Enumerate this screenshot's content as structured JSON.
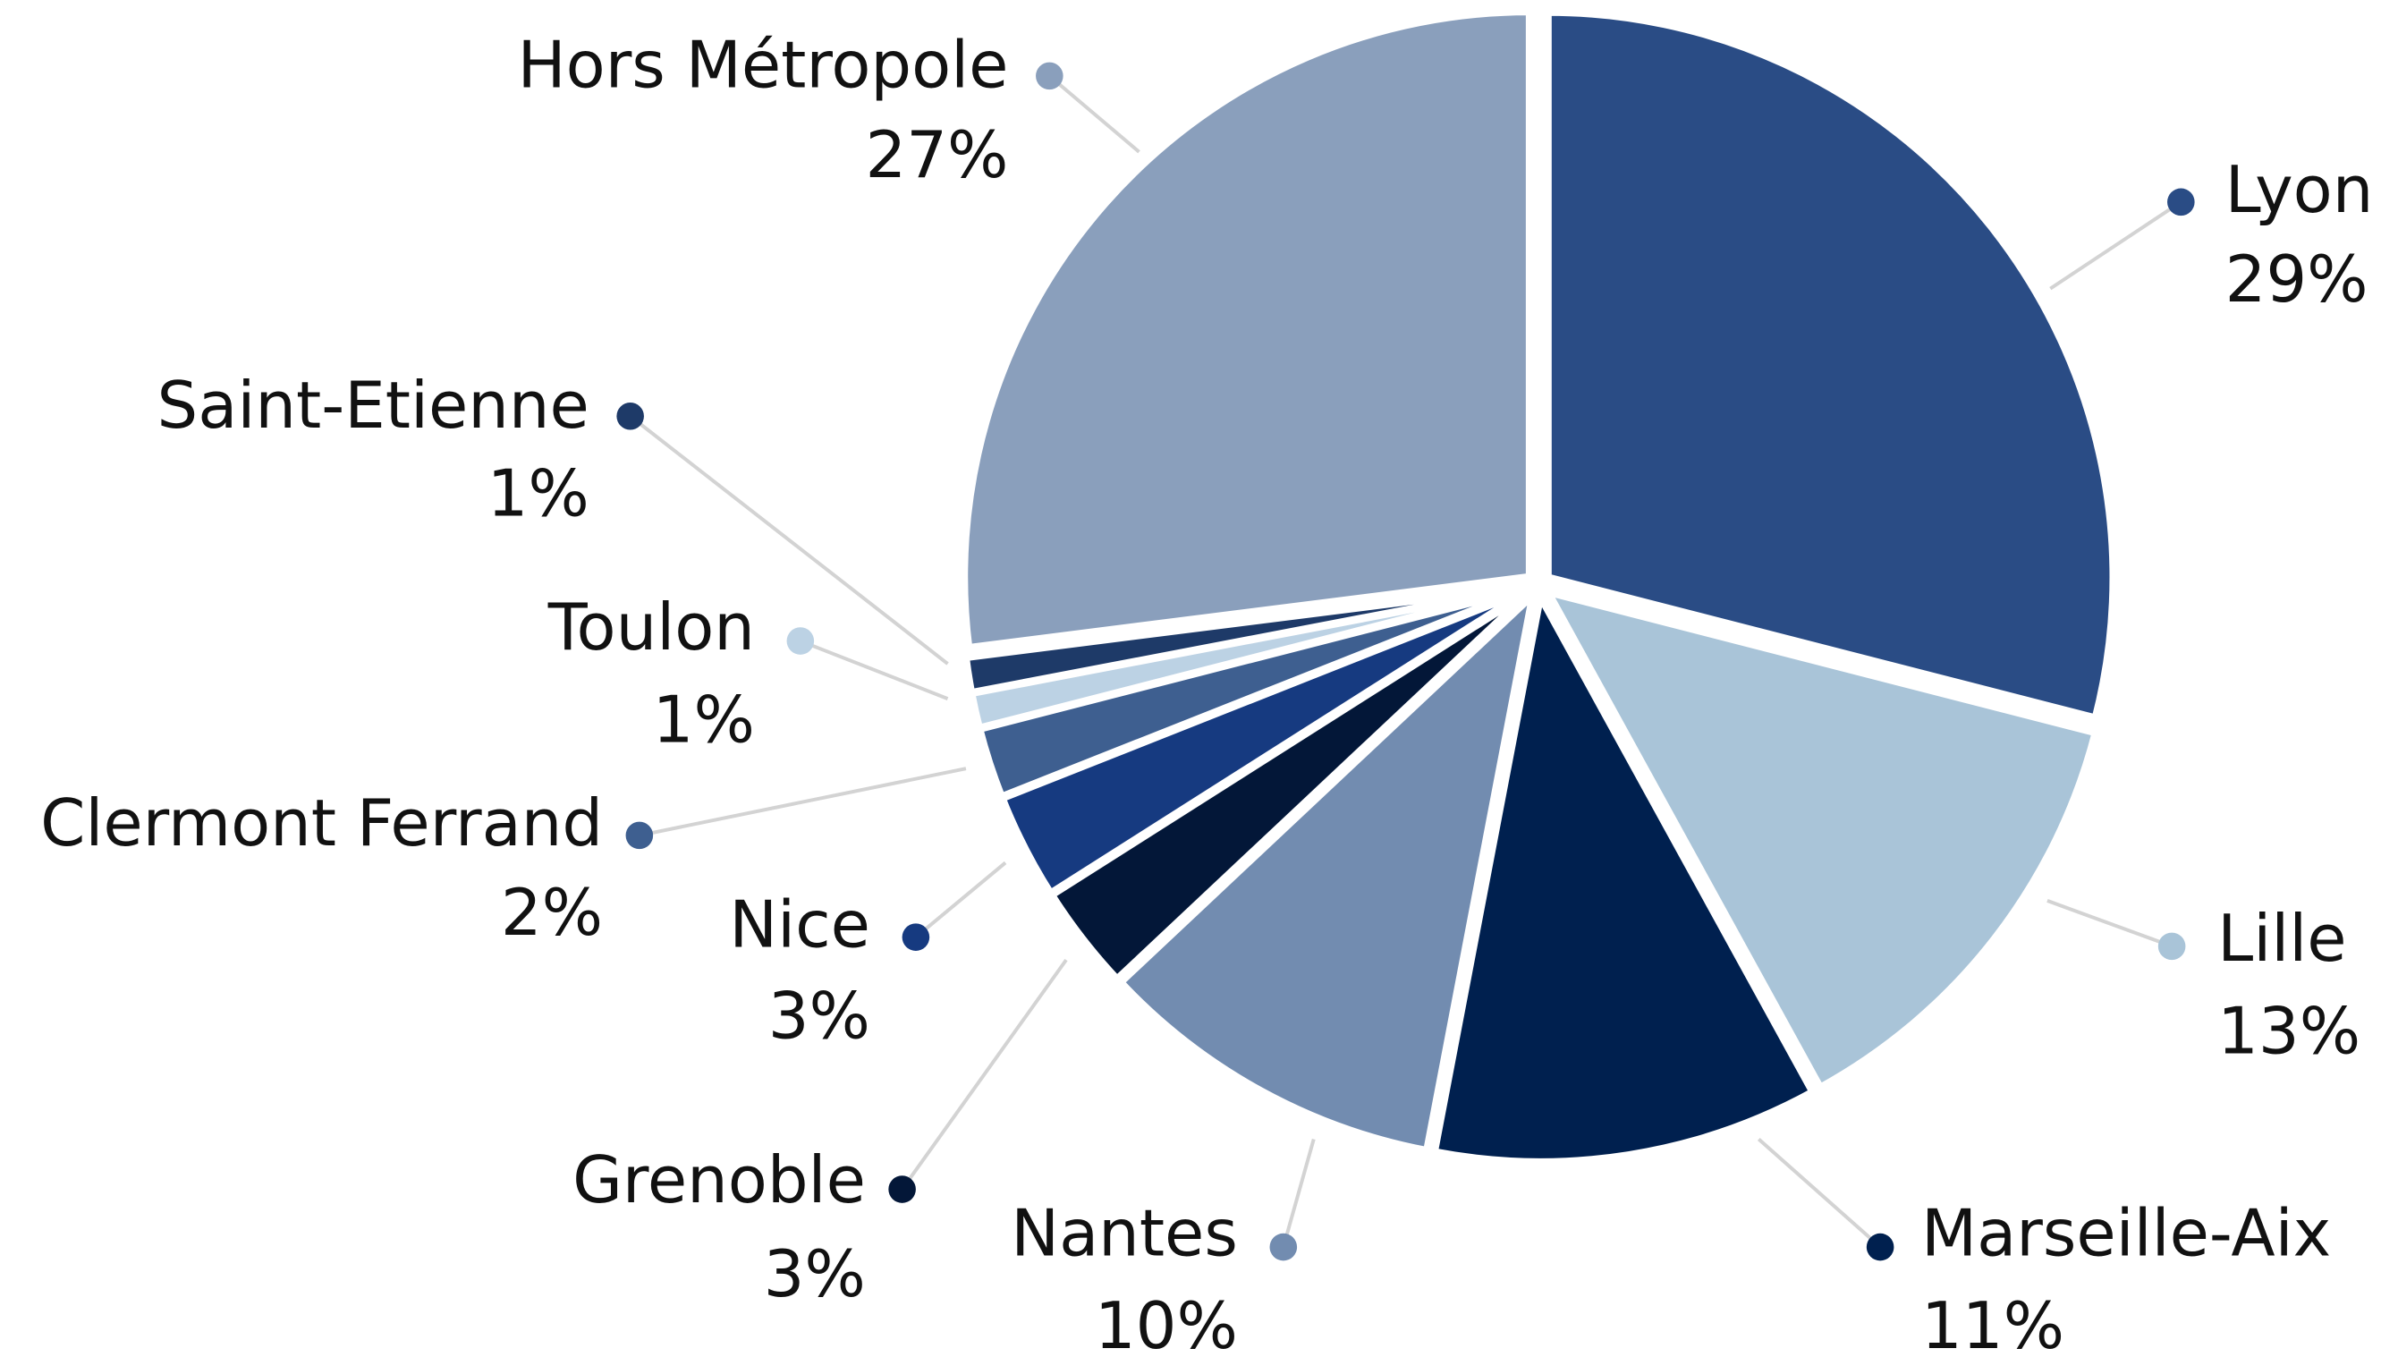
{
  "chart_data": {
    "type": "pie",
    "categories": [
      "Lyon",
      "Lille",
      "Marseille-Aix",
      "Nantes",
      "Grenoble",
      "Nice",
      "Clermont Ferrand",
      "Toulon",
      "Saint-Etienne",
      "Hors Métropole"
    ],
    "values": [
      29,
      13,
      11,
      10,
      3,
      3,
      2,
      1,
      1,
      27
    ],
    "value_labels": [
      "29%",
      "13%",
      "11%",
      "10%",
      "3%",
      "3%",
      "2%",
      "1%",
      "1%",
      "27%"
    ],
    "colors": [
      "#2a4c85",
      "#a9c4d8",
      "#00204f",
      "#728cb0",
      "#031738",
      "#163a80",
      "#3e5f90",
      "#bcd2e4",
      "#1e3a68",
      "#8a9fbc"
    ]
  }
}
